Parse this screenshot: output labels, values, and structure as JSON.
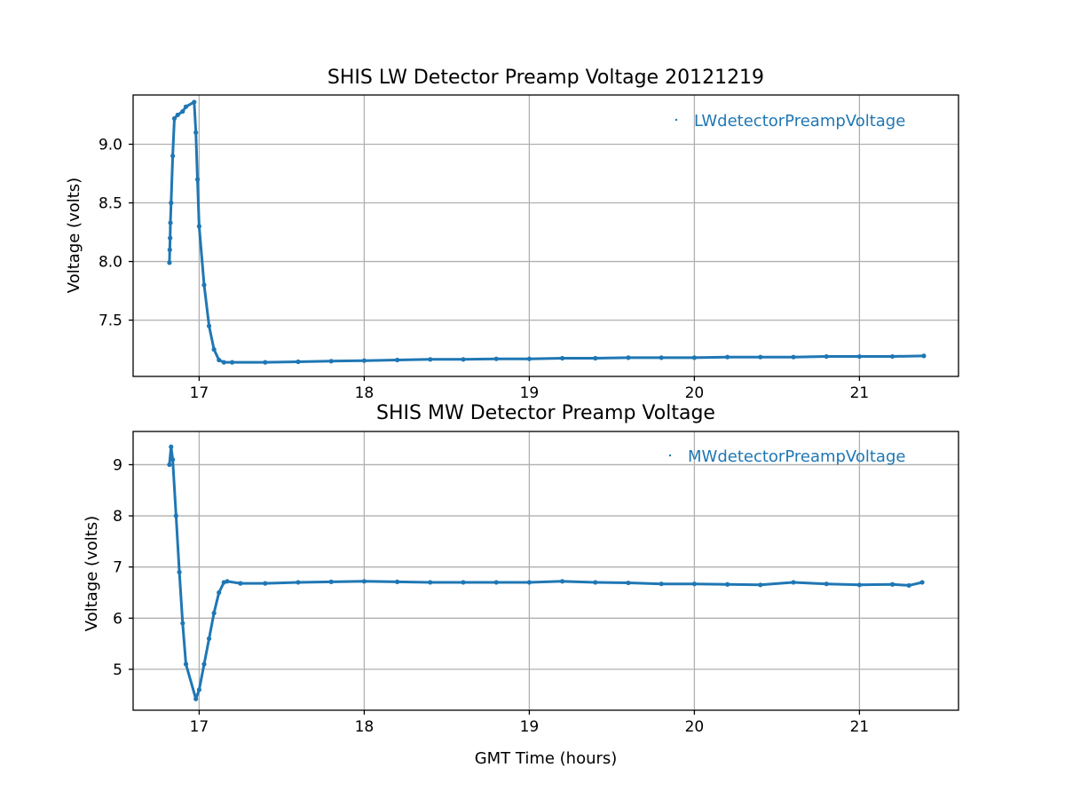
{
  "chart_data": [
    {
      "type": "scatter",
      "title": "SHIS LW Detector Preamp Voltage 20121219",
      "xlabel": "",
      "ylabel": "Voltage (volts)",
      "xlim": [
        16.6,
        21.6
      ],
      "ylim": [
        7.02,
        9.42
      ],
      "xticks": [
        17,
        18,
        19,
        20,
        21
      ],
      "yticks": [
        7.5,
        8.0,
        8.5,
        9.0
      ],
      "ytick_labels": [
        "7.5",
        "8.0",
        "8.5",
        "9.0"
      ],
      "grid": true,
      "legend_position": "top-right",
      "color": "#1f77b4",
      "series": [
        {
          "name": "LWdetectorPreampVoltage",
          "x": [
            16.82,
            16.822,
            16.824,
            16.826,
            16.83,
            16.84,
            16.85,
            16.87,
            16.9,
            16.92,
            16.97,
            16.98,
            16.99,
            17.0,
            17.03,
            17.06,
            17.09,
            17.12,
            17.15,
            17.2,
            17.4,
            17.6,
            17.8,
            18.0,
            18.2,
            18.4,
            18.6,
            18.8,
            19.0,
            19.2,
            19.4,
            19.6,
            19.8,
            20.0,
            20.2,
            20.4,
            20.6,
            20.8,
            21.0,
            21.2,
            21.39
          ],
          "y": [
            7.99,
            8.1,
            8.2,
            8.33,
            8.5,
            8.9,
            9.22,
            9.25,
            9.28,
            9.32,
            9.36,
            9.1,
            8.7,
            8.3,
            7.8,
            7.45,
            7.25,
            7.16,
            7.14,
            7.14,
            7.14,
            7.145,
            7.15,
            7.155,
            7.16,
            7.165,
            7.165,
            7.17,
            7.17,
            7.175,
            7.175,
            7.18,
            7.18,
            7.18,
            7.185,
            7.185,
            7.185,
            7.19,
            7.19,
            7.19,
            7.195
          ]
        }
      ]
    },
    {
      "type": "scatter",
      "title": "SHIS MW Detector Preamp Voltage",
      "xlabel": "GMT Time (hours)",
      "ylabel": "Voltage (volts)",
      "xlim": [
        16.6,
        21.6
      ],
      "ylim": [
        4.2,
        9.65
      ],
      "xticks": [
        17,
        18,
        19,
        20,
        21
      ],
      "yticks": [
        5,
        6,
        7,
        8,
        9
      ],
      "ytick_labels": [
        "5",
        "6",
        "7",
        "8",
        "9"
      ],
      "grid": true,
      "legend_position": "top-right",
      "color": "#1f77b4",
      "series": [
        {
          "name": "MWdetectorPreampVoltage",
          "x": [
            16.82,
            16.83,
            16.84,
            16.86,
            16.88,
            16.9,
            16.92,
            16.98,
            17.0,
            17.03,
            17.06,
            17.09,
            17.12,
            17.15,
            17.17,
            17.25,
            17.4,
            17.6,
            17.8,
            18.0,
            18.2,
            18.4,
            18.6,
            18.8,
            19.0,
            19.2,
            19.4,
            19.6,
            19.8,
            20.0,
            20.2,
            20.4,
            20.6,
            20.8,
            21.0,
            21.2,
            21.3,
            21.38
          ],
          "y": [
            9.0,
            9.35,
            9.1,
            8.0,
            6.9,
            5.9,
            5.1,
            4.42,
            4.6,
            5.1,
            5.6,
            6.1,
            6.5,
            6.7,
            6.72,
            6.68,
            6.68,
            6.7,
            6.71,
            6.72,
            6.71,
            6.7,
            6.7,
            6.7,
            6.7,
            6.72,
            6.7,
            6.69,
            6.67,
            6.67,
            6.66,
            6.65,
            6.7,
            6.67,
            6.65,
            6.66,
            6.64,
            6.7
          ]
        }
      ]
    }
  ]
}
